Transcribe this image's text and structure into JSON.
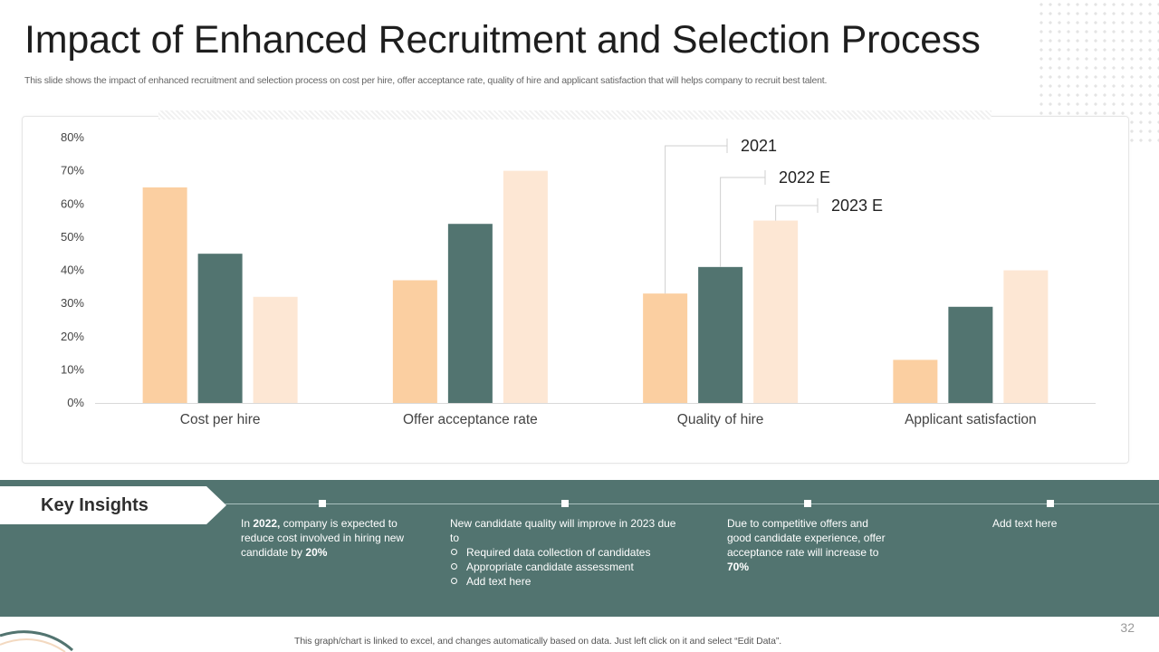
{
  "slide": {
    "title": "Impact of Enhanced Recruitment and Selection Process",
    "subtitle": "This slide shows the impact of enhanced recruitment and selection process on cost per hire, offer acceptance rate, quality of hire and applicant satisfaction that will helps company to recruit best talent.",
    "footer_note": "This graph/chart is linked to excel,  and changes automatically based on data. Just left click on it and select “Edit Data”.",
    "page_number": "32"
  },
  "colors": {
    "series_2021": "#fbcfa1",
    "series_2022": "#527470",
    "series_2023": "#fde7d4",
    "band": "#527470"
  },
  "chart_data": {
    "type": "bar",
    "title": "",
    "xlabel": "",
    "ylabel": "",
    "categories": [
      "Cost per hire",
      "Offer acceptance rate",
      "Quality of hire",
      "Applicant satisfaction"
    ],
    "series": [
      {
        "name": "2021",
        "values": [
          65,
          37,
          33,
          13
        ]
      },
      {
        "name": "2022 E",
        "values": [
          45,
          54,
          41,
          29
        ]
      },
      {
        "name": "2023 E",
        "values": [
          32,
          70,
          55,
          40
        ]
      }
    ],
    "ylim": [
      0,
      80
    ],
    "ytick_step": 10,
    "y_tick_format": "percent",
    "legend": "callout labels above third category"
  },
  "insights": {
    "heading": "Key Insights",
    "items": [
      {
        "pre": "In ",
        "bold1": "2022,",
        "mid": " company is expected to reduce cost involved  in hiring new candidate by ",
        "bold2": "20%"
      },
      {
        "text": "New candidate quality will improve in 2023 due to",
        "bullets": [
          "Required data collection of candidates",
          "Appropriate candidate assessment",
          "Add text here"
        ]
      },
      {
        "pre": "Due to competitive offers and good candidate experience, offer acceptance rate will increase to ",
        "bold": "70%"
      },
      {
        "text": "Add text here"
      }
    ]
  }
}
